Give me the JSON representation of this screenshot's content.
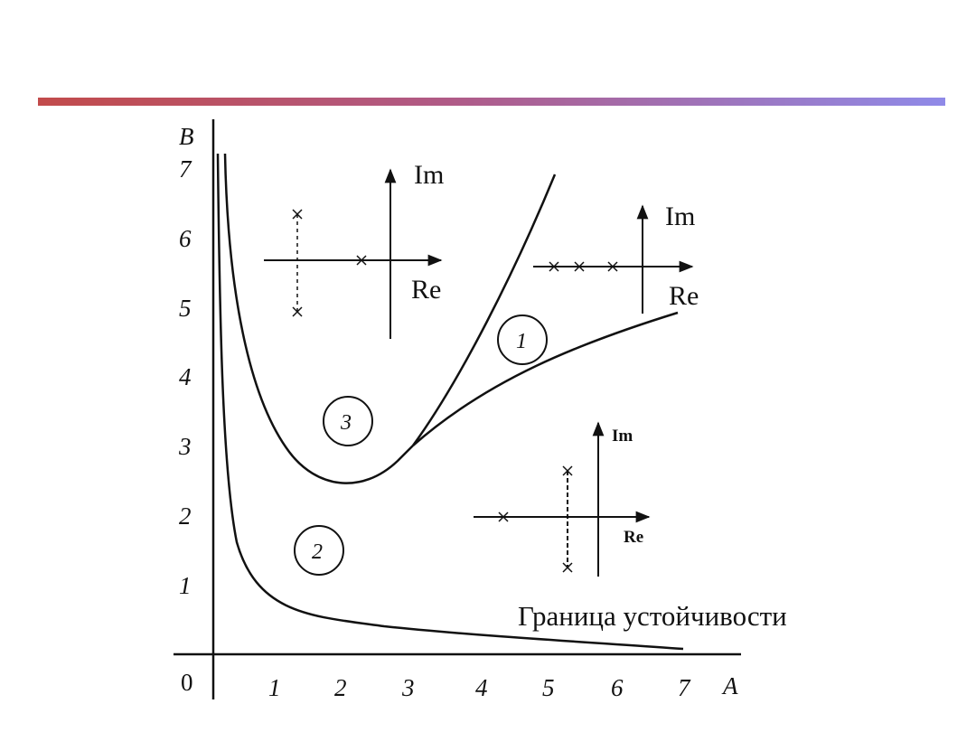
{
  "axes": {
    "x_name": "A",
    "y_name": "B",
    "origin_label": "0",
    "x_ticks": [
      "1",
      "2",
      "3",
      "4",
      "5",
      "6",
      "7"
    ],
    "y_ticks": [
      "1",
      "2",
      "3",
      "4",
      "5",
      "6",
      "7"
    ],
    "x_range": [
      0,
      7
    ],
    "y_range": [
      0,
      7
    ]
  },
  "regions": [
    {
      "id": "1",
      "label": "1"
    },
    {
      "id": "2",
      "label": "2"
    },
    {
      "id": "3",
      "label": "3"
    }
  ],
  "boundary_caption": "Граница устойчивости",
  "pole_planes": [
    {
      "im_label": "Im",
      "re_label": "Re"
    },
    {
      "im_label": "Im",
      "re_label": "Re"
    },
    {
      "im_label": "Im",
      "re_label": "Re"
    }
  ],
  "colors": {
    "ink": "#111111",
    "divider_start": "#c24b4b",
    "divider_end": "#8f8ae8"
  }
}
